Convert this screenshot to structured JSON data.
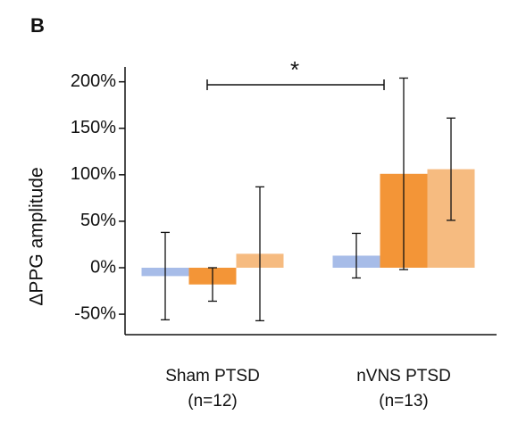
{
  "panel_label": "B",
  "chart_data": {
    "type": "bar",
    "ylabel": "ΔPPG amplitude",
    "categories": [
      "Sham PTSD",
      "nVNS PTSD"
    ],
    "category_notes": [
      "(n=12)",
      "(n=13)"
    ],
    "series": [
      {
        "color": "#a7bce8",
        "values": [
          -9,
          13
        ],
        "errors": [
          47,
          24
        ]
      },
      {
        "color": "#f39537",
        "values": [
          -18,
          101
        ],
        "errors": [
          18,
          103
        ]
      },
      {
        "color": "#f6bb80",
        "values": [
          15,
          106
        ],
        "errors": [
          72,
          55
        ]
      }
    ],
    "ylim": [
      -72,
      216
    ],
    "yticks": [
      {
        "value": -50,
        "label": "-50%"
      },
      {
        "value": 0,
        "label": "0%"
      },
      {
        "value": 50,
        "label": "50%"
      },
      {
        "value": 100,
        "label": "100%"
      },
      {
        "value": 150,
        "label": "150%"
      },
      {
        "value": 200,
        "label": "200%"
      }
    ],
    "annotation": "*"
  }
}
